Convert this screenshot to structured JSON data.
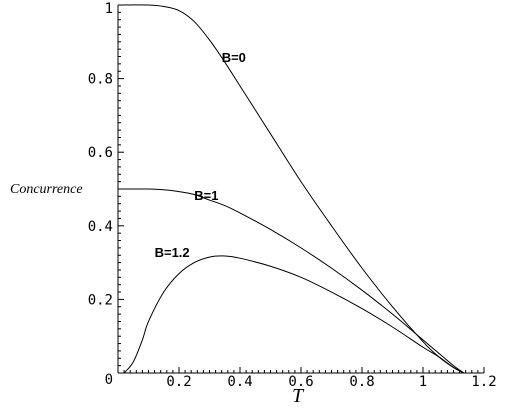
{
  "chart_data": {
    "type": "line",
    "xlabel": "T",
    "ylabel": "Concurrence",
    "xlim": [
      0,
      1.2
    ],
    "ylim": [
      0,
      1
    ],
    "x_ticks": [
      "0.2",
      "0.4",
      "0.6",
      "0.8",
      "1",
      "1.2"
    ],
    "y_ticks": [
      "0",
      "0.2",
      "0.4",
      "0.6",
      "0.8",
      "1"
    ],
    "grid": false,
    "series": [
      {
        "name": "B=0",
        "x": [
          0,
          0.1,
          0.15,
          0.2,
          0.25,
          0.3,
          0.35,
          0.4,
          0.45,
          0.5,
          0.6,
          0.7,
          0.8,
          0.9,
          1.0,
          1.05,
          1.1,
          1.134
        ],
        "y": [
          1.0,
          1.0,
          0.996,
          0.985,
          0.955,
          0.905,
          0.845,
          0.78,
          0.715,
          0.65,
          0.52,
          0.4,
          0.285,
          0.18,
          0.085,
          0.045,
          0.015,
          0.0
        ]
      },
      {
        "name": "B=1",
        "x": [
          0,
          0.1,
          0.15,
          0.2,
          0.25,
          0.3,
          0.35,
          0.4,
          0.5,
          0.6,
          0.7,
          0.8,
          0.9,
          1.0,
          1.05,
          1.1,
          1.134
        ],
        "y": [
          0.5,
          0.5,
          0.498,
          0.493,
          0.485,
          0.47,
          0.455,
          0.435,
          0.39,
          0.34,
          0.285,
          0.225,
          0.16,
          0.09,
          0.055,
          0.02,
          0.0
        ]
      },
      {
        "name": "B=1.2",
        "x": [
          0.02,
          0.05,
          0.08,
          0.1,
          0.15,
          0.2,
          0.25,
          0.3,
          0.35,
          0.4,
          0.5,
          0.6,
          0.7,
          0.8,
          0.9,
          1.0,
          1.05,
          1.1,
          1.134
        ],
        "y": [
          0.0,
          0.03,
          0.09,
          0.14,
          0.22,
          0.27,
          0.3,
          0.315,
          0.318,
          0.312,
          0.29,
          0.26,
          0.22,
          0.175,
          0.125,
          0.07,
          0.045,
          0.015,
          0.0
        ]
      }
    ],
    "annotations": [
      {
        "text": "B=0",
        "x": 0.34,
        "y": 0.845
      },
      {
        "text": "B=1",
        "x": 0.25,
        "y": 0.47
      },
      {
        "text": "B=1.2",
        "x": 0.12,
        "y": 0.315
      }
    ]
  }
}
